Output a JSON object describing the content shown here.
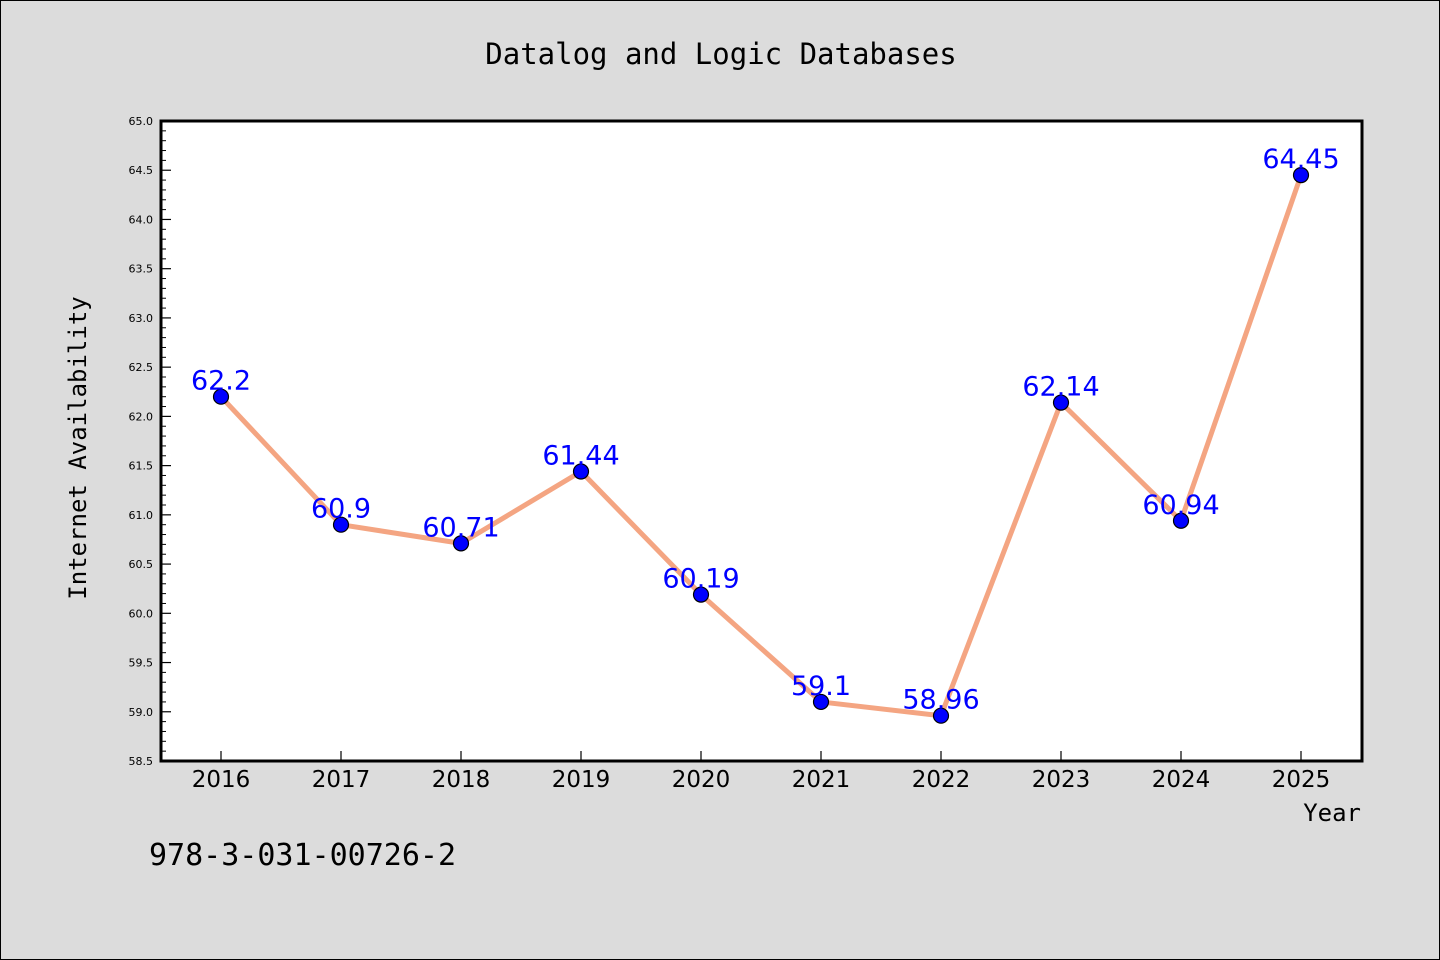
{
  "chart_data": {
    "type": "line",
    "title": "Datalog and Logic Databases",
    "xlabel": "Year",
    "ylabel": "Internet Availability",
    "annotation": "978-3-031-00726-2",
    "categories": [
      "2016",
      "2017",
      "2018",
      "2019",
      "2020",
      "2021",
      "2022",
      "2023",
      "2024",
      "2025"
    ],
    "series": [
      {
        "values": [
          62.2,
          60.9,
          60.71,
          61.44,
          60.19,
          59.1,
          58.96,
          62.14,
          60.94,
          64.45
        ],
        "labels": [
          "62.2",
          "60.9",
          "60.71",
          "61.44",
          "60.19",
          "59.1",
          "58.96",
          "62.14",
          "60.94",
          "64.45"
        ]
      }
    ],
    "ylim": [
      58.5,
      65.0
    ],
    "yticks": [
      "58.5",
      "59.0",
      "59.5",
      "60.0",
      "60.5",
      "61.0",
      "61.5",
      "62.0",
      "62.5",
      "63.0",
      "63.5",
      "64.0",
      "64.5",
      "65.0"
    ],
    "grid": false,
    "colors": {
      "line": "#f4a582",
      "marker": "#0000ff",
      "label": "#0000ff",
      "background": "#dcdcdc",
      "plot_background": "#ffffff"
    }
  }
}
